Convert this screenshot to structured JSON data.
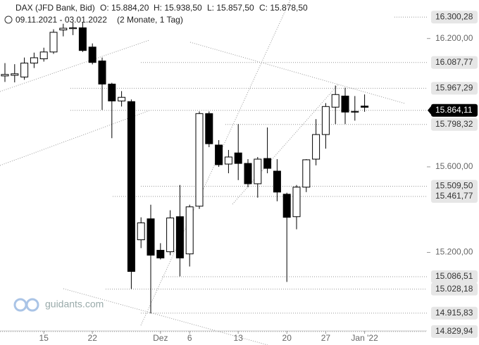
{
  "chart_data": {
    "type": "candlestick",
    "title": "DAX (JFD Bank, Bid)",
    "ohlc_labels": [
      "O: 15.884,20",
      "H: 15.938,50",
      "L: 15.857,50",
      "C: 15.878,50"
    ],
    "date_range": "09.11.2021 - 03.01.2022",
    "period": "(2 Monate, 1 Tag)",
    "watermark": "guidants.com",
    "categories": [
      null,
      null,
      null,
      null,
      "15",
      null,
      null,
      null,
      null,
      "22",
      null,
      null,
      null,
      null,
      null,
      null,
      "Dez",
      null,
      null,
      "6",
      null,
      null,
      null,
      null,
      "13",
      null,
      null,
      null,
      null,
      "20",
      null,
      null,
      null,
      "27",
      null,
      null,
      null,
      "Jan '22"
    ],
    "open": [
      16025,
      16028,
      16020,
      16085,
      16105,
      16137,
      16240,
      16246,
      16250,
      16160,
      16095,
      15987,
      15908,
      15905,
      15259,
      15357,
      15210,
      15203,
      15367,
      15193,
      15416,
      15849,
      15702,
      15613,
      15665,
      15616,
      15521,
      15639,
      15580,
      15472,
      15367,
      15505,
      15636,
      15751,
      15879,
      15931,
      15859,
      15884.2
    ],
    "high": [
      16085,
      16080,
      16111,
      16134,
      16157,
      16243,
      16269,
      16275,
      16275,
      16177,
      16111,
      15993,
      15954,
      15915,
      15364,
      15423,
      15243,
      15397,
      15515,
      15423,
      15859,
      15859,
      15725,
      15679,
      15800,
      15636,
      15646,
      15784,
      15636,
      15479,
      15515,
      15636,
      15823,
      15898,
      15980,
      15970,
      15931,
      15938.5
    ],
    "low": [
      15997,
      15995,
      16007,
      16062,
      16092,
      16128,
      16210,
      16216,
      16137,
      16079,
      15866,
      15734,
      15882,
      15029,
      15220,
      14915,
      15167,
      15187,
      15088,
      15134,
      15403,
      15692,
      15600,
      15570,
      15538,
      15505,
      15456,
      15570,
      15439,
      15062,
      15308,
      15482,
      15607,
      15685,
      15800,
      15800,
      15816,
      15857.5
    ],
    "close": [
      16032,
      16035,
      16085,
      16110,
      16137,
      16229,
      16248,
      16250,
      16144,
      16088,
      15987,
      15908,
      15925,
      15111,
      15338,
      15187,
      15174,
      15361,
      15174,
      15413,
      15849,
      15708,
      15610,
      15646,
      15616,
      15521,
      15636,
      15593,
      15482,
      15364,
      15505,
      15633,
      15751,
      15882,
      15938,
      15856,
      15856,
      15878.5
    ],
    "up_color": "#ffffff",
    "down_color": "#000000",
    "ylim": [
      14800,
      16380
    ],
    "yticks": [
      {
        "value": 16200,
        "label": "16.200,00"
      },
      {
        "value": 15600,
        "label": "15.600,00"
      },
      {
        "value": 15200,
        "label": "15.200,00"
      }
    ],
    "badges": [
      {
        "value": 16300.28,
        "label": "16.300,28",
        "color": "#e6e6e6"
      },
      {
        "value": 16087.77,
        "label": "16.087,77",
        "color": "#e6e6e6"
      },
      {
        "value": 15967.29,
        "label": "15.967,29",
        "color": "#e6e6e6"
      },
      {
        "value": 15864.11,
        "label": "15.864,11",
        "color": "#000000"
      },
      {
        "value": 15798.32,
        "label": "15.798,32",
        "color": "#e6e6e6"
      },
      {
        "value": 15509.5,
        "label": "15.509,50",
        "color": "#e6e6e6"
      },
      {
        "value": 15461.77,
        "label": "15.461,77",
        "color": "#e6e6e6"
      },
      {
        "value": 15086.51,
        "label": "15.086,51",
        "color": "#e6e6e6"
      },
      {
        "value": 15028.18,
        "label": "15.028,18",
        "color": "#e6e6e6"
      },
      {
        "value": 14915.83,
        "label": "14.915,83",
        "color": "#e6e6e6"
      },
      {
        "value": 14829.94,
        "label": "14.829,94",
        "color": "#e6e6e6"
      }
    ]
  }
}
